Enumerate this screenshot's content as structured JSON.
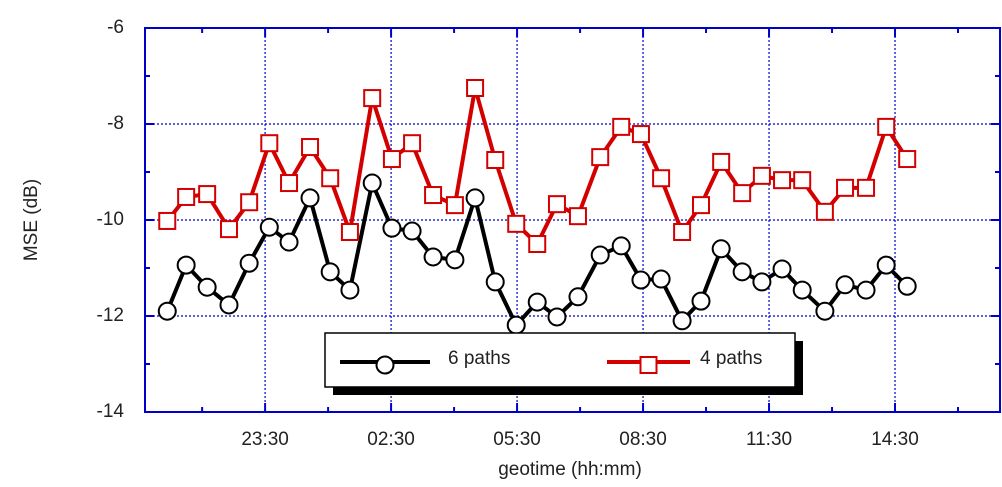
{
  "chart_data": {
    "type": "line",
    "xlabel": "geotime (hh:mm)",
    "ylabel": "MSE (dB)",
    "x": [
      21.17,
      21.62,
      22.12,
      22.64,
      23.12,
      23.6,
      24.07,
      24.57,
      25.05,
      25.52,
      26.05,
      26.52,
      27.0,
      27.5,
      28.02,
      28.5,
      28.98,
      29.48,
      29.98,
      30.45,
      30.95,
      31.48,
      31.98,
      32.45,
      32.93,
      33.43,
      33.88,
      34.36,
      34.86,
      35.33,
      35.81,
      36.29,
      36.83,
      37.31,
      37.81,
      38.29,
      38.79
    ],
    "series": [
      {
        "name": "6 paths",
        "color": "#000000",
        "marker": "circle",
        "values": [
          -11.9,
          -10.94,
          -11.4,
          -11.77,
          -10.9,
          -10.15,
          -10.46,
          -9.54,
          -11.08,
          -11.46,
          -9.23,
          -10.17,
          -10.23,
          -10.77,
          -10.83,
          -9.54,
          -11.29,
          -12.19,
          -11.71,
          -12.02,
          -11.6,
          -10.73,
          -10.54,
          -11.25,
          -11.23,
          -12.1,
          -11.69,
          -10.6,
          -11.08,
          -11.29,
          -11.02,
          -11.46,
          -11.9,
          -11.35,
          -11.46,
          -10.94,
          -11.38
        ]
      },
      {
        "name": "4 paths",
        "color": "#d40000",
        "marker": "square",
        "values": [
          -10.02,
          -9.52,
          -9.46,
          -10.19,
          -9.63,
          -8.4,
          -9.23,
          -8.48,
          -9.13,
          -10.25,
          -7.46,
          -8.73,
          -8.4,
          -9.48,
          -9.69,
          -7.25,
          -8.75,
          -10.08,
          -10.5,
          -9.67,
          -9.92,
          -8.69,
          -8.06,
          -8.21,
          -9.13,
          -10.25,
          -9.69,
          -8.79,
          -9.44,
          -9.08,
          -9.17,
          -9.17,
          -9.83,
          -9.33,
          -9.33,
          -8.06,
          -8.73
        ]
      }
    ],
    "xlim": [
      20.64,
      41.0
    ],
    "xticks": [
      {
        "value": 23.5,
        "label": "23:30"
      },
      {
        "value": 26.5,
        "label": "02:30"
      },
      {
        "value": 29.5,
        "label": "05:30"
      },
      {
        "value": 32.5,
        "label": "08:30"
      },
      {
        "value": 35.5,
        "label": "11:30"
      },
      {
        "value": 38.5,
        "label": "14:30"
      }
    ],
    "ylim": [
      -14,
      -6
    ],
    "yticks": [
      -14,
      -12,
      -10,
      -8,
      -6
    ],
    "grid": true,
    "axis_color": "#0000cc"
  }
}
